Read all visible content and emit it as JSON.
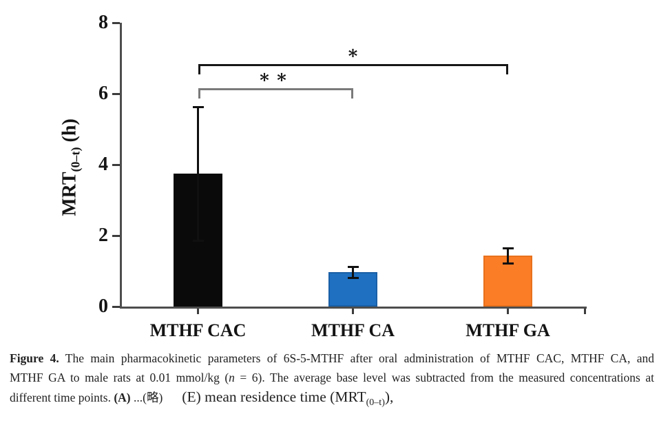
{
  "chart_data": {
    "type": "bar",
    "title": "",
    "ylabel": "MRT(0–t) (h)",
    "ylabel_main": "MRT",
    "ylabel_sub": "(0–t)",
    "ylabel_unit": " (h)",
    "xlabel": "",
    "ylim": [
      0,
      8
    ],
    "yticks": [
      0,
      2,
      4,
      6,
      8
    ],
    "grid": false,
    "legend": "none",
    "categories": [
      "MTHF CAC",
      "MTHF CA",
      "MTHF GA"
    ],
    "values": [
      3.75,
      0.97,
      1.44
    ],
    "errors": [
      1.88,
      0.15,
      0.22
    ],
    "colors": [
      "#0a0a0a",
      "#1f70c1",
      "#fb7d25"
    ],
    "edge_colors": [
      "#0a0a0a",
      "#1a5fa6",
      "#e8711c"
    ],
    "significance": [
      {
        "from": 0,
        "to": 1,
        "y": 6.15,
        "label": "∗∗",
        "color": "#7a7a7a"
      },
      {
        "from": 0,
        "to": 2,
        "y": 6.83,
        "label": "∗",
        "color": "#161616"
      }
    ]
  },
  "caption": {
    "fig_label": "Figure 4.",
    "line1_rest": " The main pharmacokinetic parameters of 6S-5-MTHF after oral administration of MTHF CAC, MTHF CA, and",
    "line2_pre": "MTHF GA to male rats at 0.01 mmol/kg (",
    "line2_n": "n",
    "line2_post": " = 6). The average base level was subtracted from the measured concentrations at",
    "line3_pre": "different time points. ",
    "line3_a": "(A)",
    "line3_dots": " ...(略)",
    "line3_e": "(E)",
    "line3_e_text": " mean residence time (MRT",
    "line3_e_sub": "(0–t)",
    "line3_e_end": "),"
  }
}
